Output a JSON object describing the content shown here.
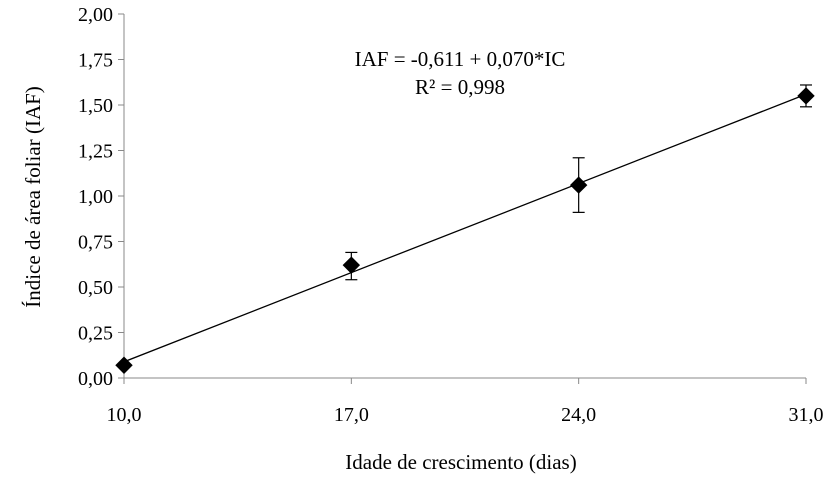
{
  "chart_data": {
    "type": "scatter",
    "title": "",
    "xlabel": "Idade de crescimento (dias)",
    "ylabel": "Índice de área foliar (IAF)",
    "xlim": [
      10,
      31
    ],
    "ylim": [
      0,
      2
    ],
    "x_ticks": [
      10,
      17,
      24,
      31
    ],
    "x_tick_labels": [
      "10,0",
      "17,0",
      "24,0",
      "31,0"
    ],
    "y_ticks": [
      0,
      0.25,
      0.5,
      0.75,
      1.0,
      1.25,
      1.5,
      1.75,
      2.0
    ],
    "y_tick_labels": [
      "0,00",
      "0,25",
      "0,50",
      "0,75",
      "1,00",
      "1,25",
      "1,50",
      "1,75",
      "2,00"
    ],
    "grid": false,
    "legend": "none",
    "series": [
      {
        "marker": "diamond",
        "color": "#000000",
        "points": [
          {
            "x": 10,
            "y": 0.07,
            "err_low": 0.06,
            "err_high": 0.08
          },
          {
            "x": 17,
            "y": 0.62,
            "err_low": 0.54,
            "err_high": 0.69
          },
          {
            "x": 24,
            "y": 1.06,
            "err_low": 0.91,
            "err_high": 1.21
          },
          {
            "x": 31,
            "y": 1.55,
            "err_low": 1.49,
            "err_high": 1.61
          }
        ]
      }
    ],
    "trendline": {
      "intercept": -0.611,
      "slope": 0.07,
      "x_from": 10,
      "x_to": 31,
      "color": "#000000"
    },
    "annotations": [
      "IAF = -0,611 + 0,070*IC",
      "R² = 0,998"
    ]
  }
}
